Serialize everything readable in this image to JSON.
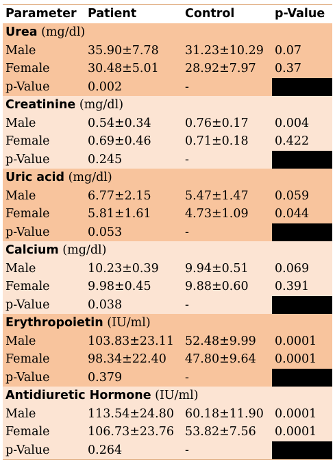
{
  "header": [
    "Parameter",
    "Patient",
    "Control",
    "p-Value"
  ],
  "sections": [
    {
      "name": "Urea",
      "unit": "(mg/dl)",
      "shade": "dark",
      "rows": [
        [
          "Male",
          "35.90±7.78",
          "31.23±10.29",
          "0.07"
        ],
        [
          "Female",
          "30.48±5.01",
          "28.92±7.97",
          "0.37"
        ],
        [
          "p-Value",
          "0.002",
          "-",
          ""
        ]
      ]
    },
    {
      "name": "Creatinine",
      "unit": "(mg/dl)",
      "shade": "light",
      "rows": [
        [
          "Male",
          "0.54±0.34",
          "0.76±0.17",
          "0.004"
        ],
        [
          "Female",
          "0.69±0.46",
          "0.71±0.18",
          "0.422"
        ],
        [
          "p-Value",
          "0.245",
          "-",
          ""
        ]
      ]
    },
    {
      "name": "Uric acid",
      "unit": "(mg/dl)",
      "shade": "dark",
      "rows": [
        [
          "Male",
          "6.77±2.15",
          "5.47±1.47",
          "0.059"
        ],
        [
          "Female",
          "5.81±1.61",
          "4.73±1.09",
          "0.044"
        ],
        [
          "p-Value",
          "0.053",
          "-",
          ""
        ]
      ]
    },
    {
      "name": "Calcium",
      "unit": "(mg/dl)",
      "shade": "light",
      "rows": [
        [
          "Male",
          "10.23±0.39",
          "9.94±0.51",
          "0.069"
        ],
        [
          "Female",
          "9.98±0.45",
          "9.88±0.60",
          "0.391"
        ],
        [
          "p-Value",
          "0.038",
          "-",
          ""
        ]
      ]
    },
    {
      "name": "Erythropoietin",
      "unit": "(IU/ml)",
      "shade": "dark",
      "rows": [
        [
          "Male",
          "103.83±23.11",
          "52.48±9.99",
          "0.0001"
        ],
        [
          "Female",
          "98.34±22.40",
          "47.80±9.64",
          "0.0001"
        ],
        [
          "p-Value",
          "0.379",
          "-",
          ""
        ]
      ]
    },
    {
      "name": "Antidiuretic Hormone",
      "unit": "(IU/ml)",
      "shade": "light",
      "rows": [
        [
          "Male",
          "113.54±24.80",
          "60.18±11.90",
          "0.0001"
        ],
        [
          "Female",
          "106.73±23.76",
          "53.82±7.56",
          "0.0001"
        ],
        [
          "p-Value",
          "0.264",
          "-",
          ""
        ]
      ]
    }
  ]
}
